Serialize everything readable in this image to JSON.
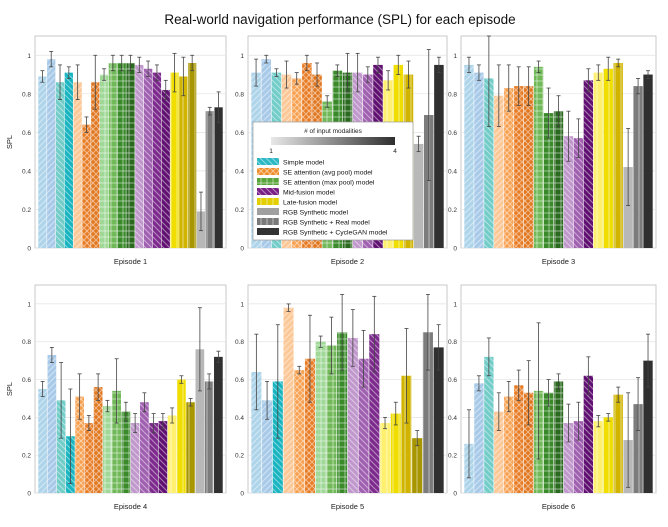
{
  "chart_data": {
    "type": "bar",
    "title": "Real-world navigation performance (SPL) for each episode",
    "ylabel": "SPL",
    "ylim": [
      0,
      1.1
    ],
    "yticks": [
      "0",
      "0.2",
      "0.4",
      "0.6",
      "0.8",
      "1"
    ],
    "grid": true,
    "colorbar": {
      "label": "# of input modalities",
      "min_label": "1",
      "max_label": "4"
    },
    "groups": [
      {
        "name": "Simple model",
        "color": "#2bb8c4",
        "hatch": "diag-back",
        "members": [
          0,
          1,
          2,
          3
        ]
      },
      {
        "name": "SE attention (avg pool) model",
        "color": "#f08c28",
        "hatch": "cross",
        "members": [
          4,
          5,
          6,
          7
        ]
      },
      {
        "name": "SE attention (max pool) model",
        "color": "#5aa43c",
        "hatch": "grid",
        "members": [
          8,
          9,
          10,
          11
        ]
      },
      {
        "name": "Mid-fusion model",
        "color": "#7a1f86",
        "hatch": "diag-back",
        "members": [
          12,
          13,
          14,
          15
        ]
      },
      {
        "name": "Late-fusion model",
        "color": "#e4d000",
        "hatch": "vert",
        "members": [
          16,
          17,
          18,
          19
        ]
      },
      {
        "name": "RGB Synthetic model",
        "color": "#a0a0a0",
        "hatch": "none",
        "members": [
          20
        ]
      },
      {
        "name": "RGB Synthetic + Real model",
        "color": "#7a7a7a",
        "hatch": "vert",
        "members": [
          21
        ]
      },
      {
        "name": "RGB Synthetic + CycleGAN model",
        "color": "#333333",
        "hatch": "none",
        "members": [
          22
        ]
      }
    ],
    "bar_colors": [
      "#aed4ea",
      "#a8cae8",
      "#72ccc8",
      "#18b4c0",
      "#fcc898",
      "#f6a050",
      "#e87c24",
      "#e0761e",
      "#a0d898",
      "#70b858",
      "#3a8a2a",
      "#2a6a1e",
      "#c098cc",
      "#a060b0",
      "#7c2a8c",
      "#601070",
      "#fff070",
      "#f0de00",
      "#d0b400",
      "#a89600",
      "#b8b8b8",
      "#7c7c7c",
      "#303030"
    ],
    "bar_hatch": [
      "fwd",
      "fwd",
      "back",
      "back",
      "fwd",
      "cross",
      "cross",
      "cross",
      "grid",
      "grid",
      "grid",
      "grid",
      "back",
      "back",
      "back",
      "back",
      "vert",
      "vert",
      "vert",
      "vert",
      "none",
      "vert",
      "none"
    ],
    "episodes": [
      {
        "label": "Episode 1",
        "values": [
          0.89,
          0.98,
          0.86,
          0.91,
          0.86,
          0.64,
          0.86,
          0.9,
          0.96,
          0.96,
          0.96,
          0.95,
          0.93,
          0.91,
          0.82,
          0.91,
          0.89,
          0.96,
          0.19,
          0.71,
          0.73
        ],
        "errors": [
          0.03,
          0.04,
          0.09,
          0.03,
          0.09,
          0.04,
          0.14,
          0.03,
          0.04,
          0.04,
          0.04,
          0.04,
          0.04,
          0.04,
          0.05,
          0.1,
          0.1,
          0.04,
          0.1,
          0.02,
          0.08
        ]
      },
      {
        "label": "Episode 2",
        "values": [
          0.91,
          0.98,
          0.91,
          0.9,
          0.88,
          0.96,
          0.9,
          0.76,
          0.92,
          0.91,
          0.91,
          0.9,
          0.95,
          0.87,
          0.95,
          0.9,
          0.54,
          0.69,
          0.95
        ],
        "errors": [
          0.07,
          0.02,
          0.02,
          0.07,
          0.03,
          0.04,
          0.06,
          0.03,
          0.03,
          0.1,
          0.1,
          0.04,
          0.04,
          0.05,
          0.05,
          0.07,
          0.04,
          0.34,
          0.04
        ]
      },
      {
        "label": "Episode 3",
        "values": [
          0.95,
          0.91,
          0.88,
          0.79,
          0.83,
          0.84,
          0.84,
          0.94,
          0.7,
          0.71,
          0.58,
          0.57,
          0.87,
          0.91,
          0.93,
          0.96,
          0.42,
          0.84,
          0.9
        ],
        "errors": [
          0.04,
          0.04,
          0.25,
          0.16,
          0.12,
          0.1,
          0.1,
          0.03,
          0.13,
          0.08,
          0.13,
          0.1,
          0.06,
          0.04,
          0.06,
          0.02,
          0.2,
          0.04,
          0.02
        ]
      },
      {
        "label": "Episode 4",
        "values": [
          0.55,
          0.73,
          0.49,
          0.3,
          0.51,
          0.37,
          0.56,
          0.46,
          0.54,
          0.43,
          0.37,
          0.48,
          0.37,
          0.38,
          0.41,
          0.6,
          0.48,
          0.76,
          0.59,
          0.72
        ],
        "errors": [
          0.04,
          0.04,
          0.2,
          0.25,
          0.12,
          0.04,
          0.07,
          0.03,
          0.17,
          0.05,
          0.05,
          0.05,
          0.05,
          0.04,
          0.04,
          0.02,
          0.02,
          0.22,
          0.04,
          0.03
        ]
      },
      {
        "label": "Episode 5",
        "values": [
          0.64,
          0.49,
          0.59,
          0.98,
          0.65,
          0.71,
          0.8,
          0.78,
          0.85,
          0.82,
          0.71,
          0.84,
          0.37,
          0.42,
          0.62,
          0.29,
          0.85,
          0.77
        ],
        "errors": [
          0.2,
          0.1,
          0.3,
          0.02,
          0.02,
          0.23,
          0.03,
          0.15,
          0.2,
          0.15,
          0.15,
          0.2,
          0.03,
          0.06,
          0.25,
          0.04,
          0.2,
          0.12
        ]
      },
      {
        "label": "Episode 6",
        "values": [
          0.26,
          0.58,
          0.72,
          0.43,
          0.51,
          0.57,
          0.53,
          0.54,
          0.53,
          0.59,
          0.37,
          0.38,
          0.62,
          0.38,
          0.4,
          0.52,
          0.28,
          0.47,
          0.7
        ],
        "errors": [
          0.18,
          0.04,
          0.1,
          0.1,
          0.08,
          0.08,
          0.17,
          0.36,
          0.07,
          0.04,
          0.1,
          0.1,
          0.1,
          0.03,
          0.02,
          0.04,
          0.25,
          0.14,
          0.14
        ]
      }
    ]
  }
}
